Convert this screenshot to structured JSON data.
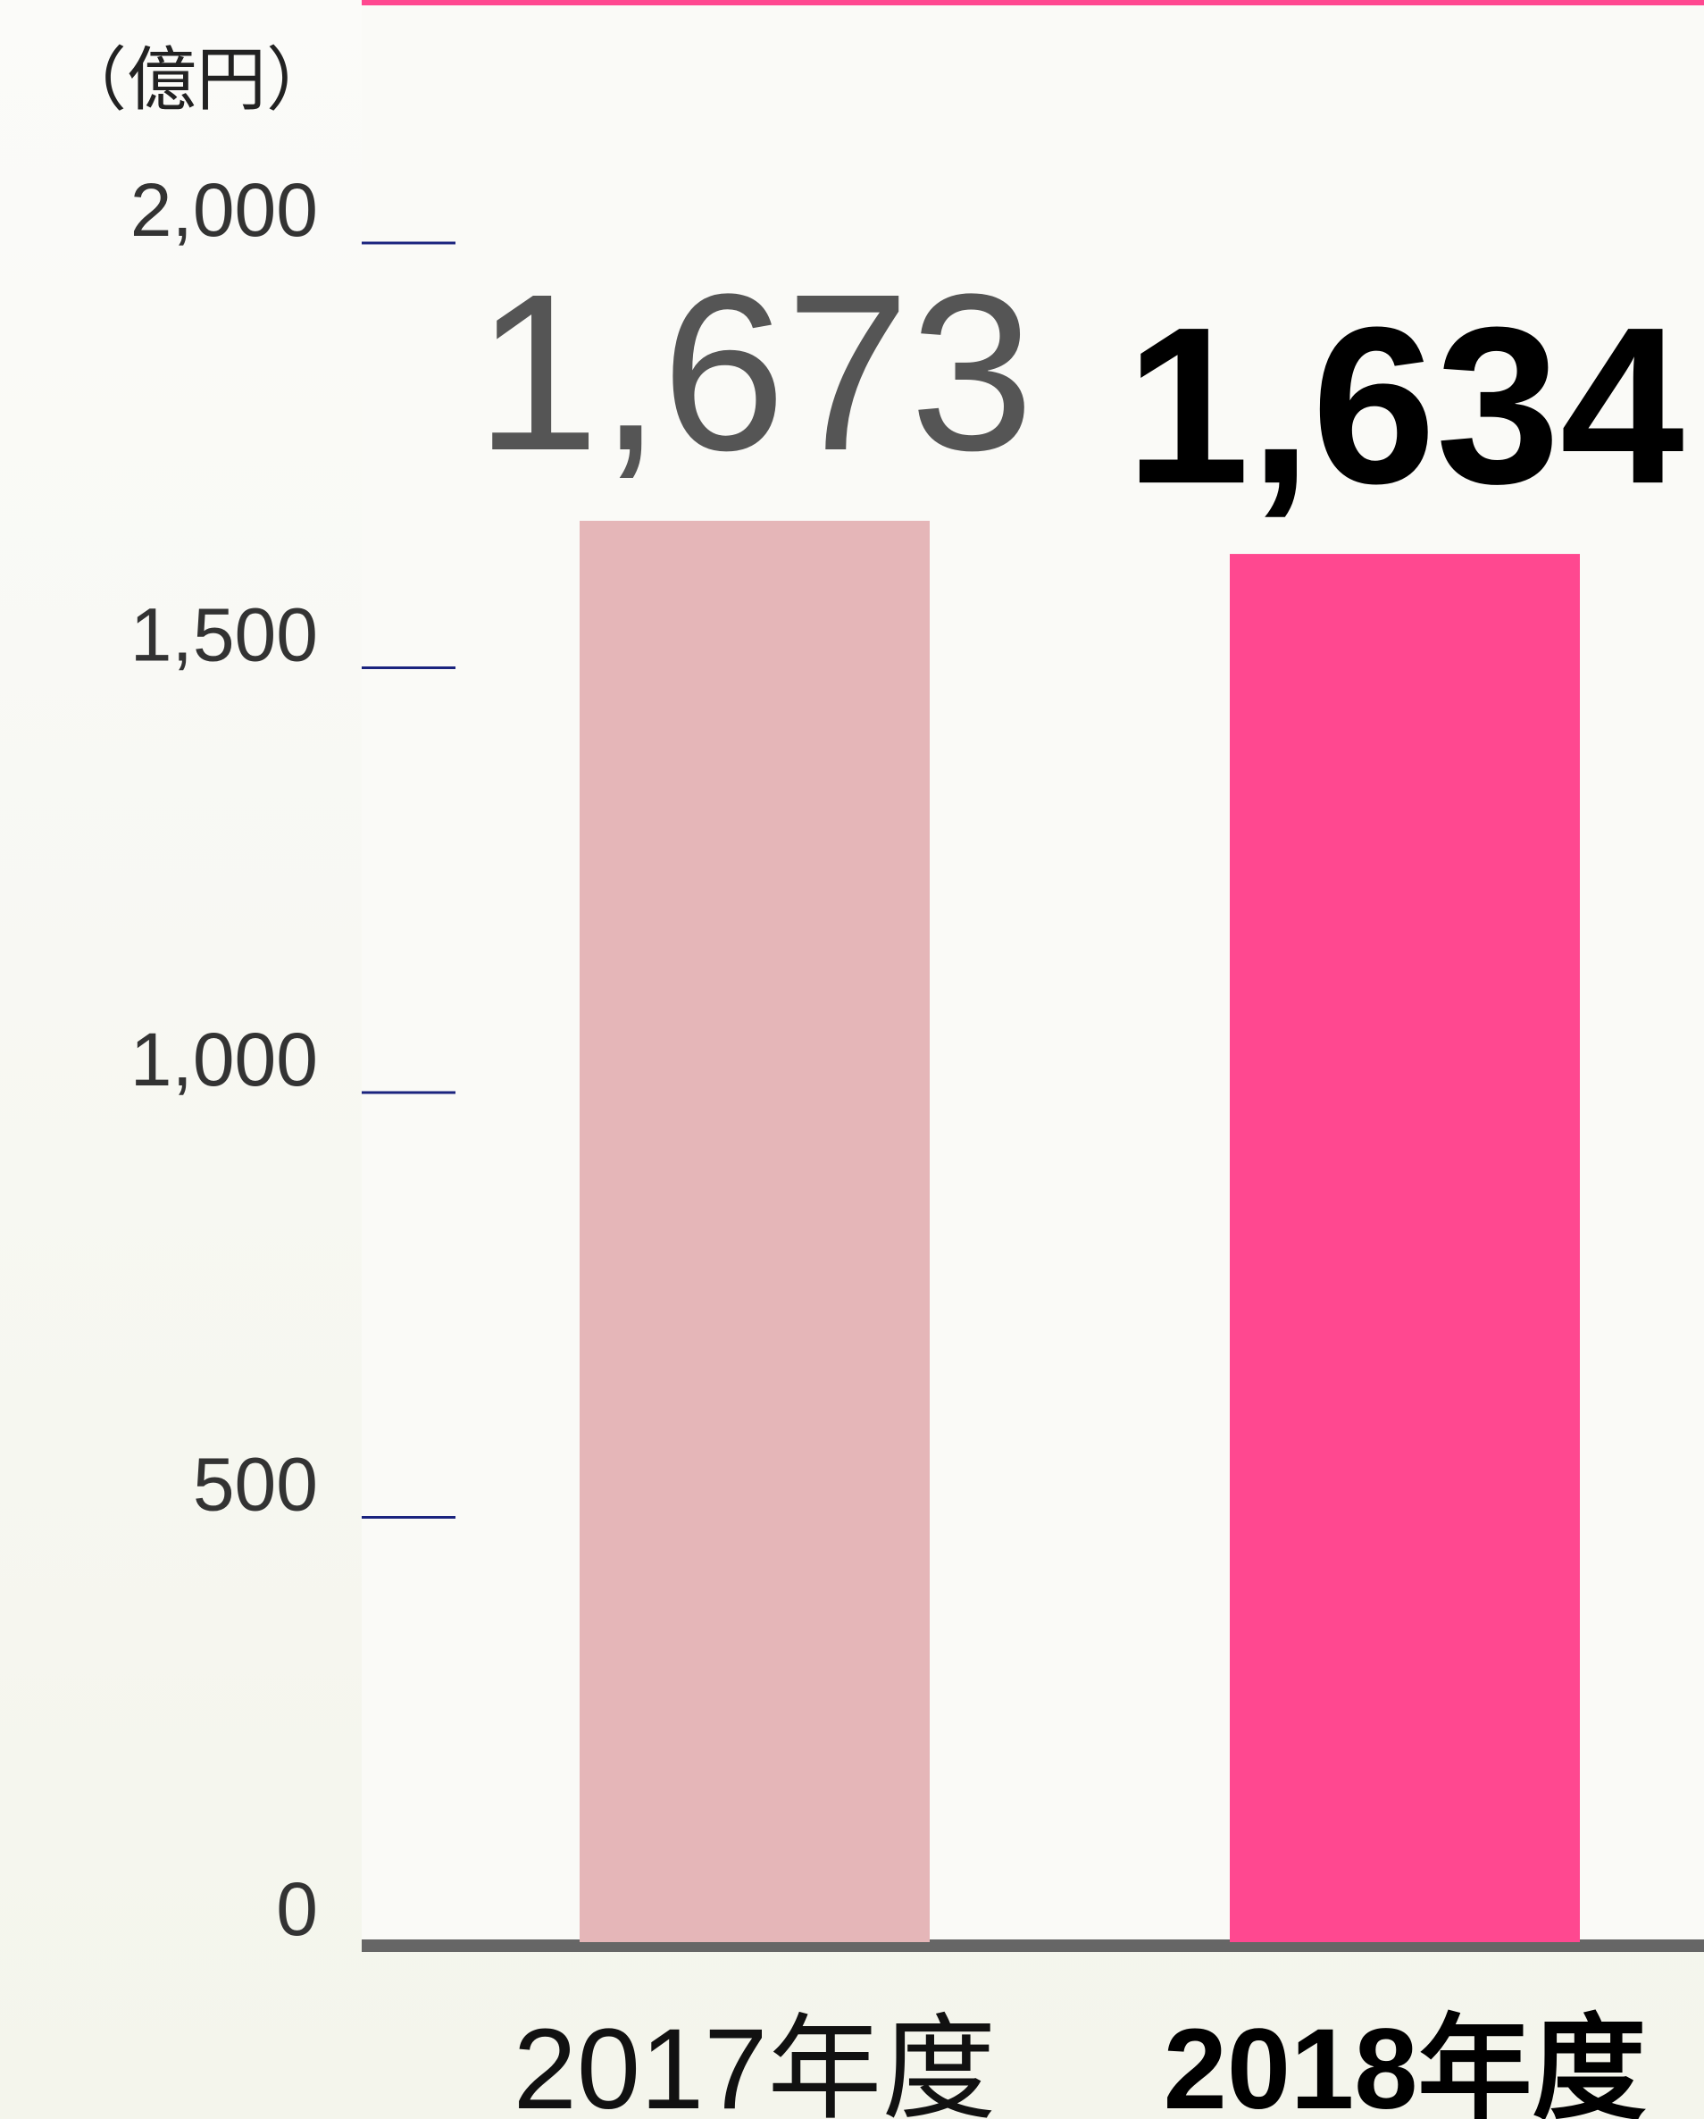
{
  "chart_data": {
    "type": "bar",
    "unit": "（億円）",
    "categories": [
      "2017年度",
      "2018年度"
    ],
    "values": [
      1673,
      1634
    ],
    "value_labels": [
      "1,673",
      "1,634"
    ],
    "colors": [
      "#e5b6b8",
      "#ff4890"
    ],
    "ylim": [
      0,
      2000
    ],
    "yticks": [
      0,
      500,
      {
        "value": 1000,
        "label": "1,000"
      },
      {
        "value": 1500,
        "label": "1,500"
      },
      {
        "value": 2000,
        "label": "2,000"
      }
    ]
  }
}
